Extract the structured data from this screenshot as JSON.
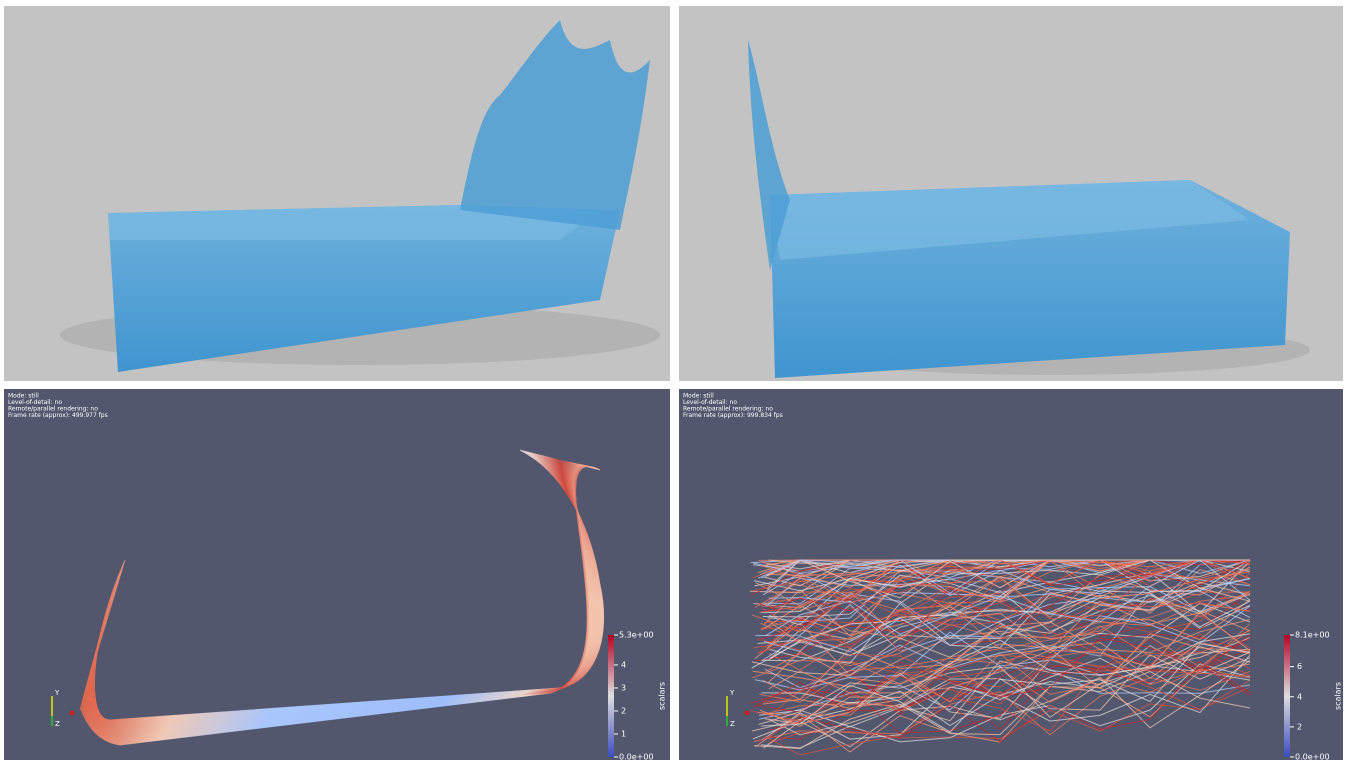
{
  "panels": [
    {
      "kind": "render"
    },
    {
      "kind": "render"
    },
    {
      "kind": "streamlines",
      "info": [
        "Mode: still",
        "Level-of-detail: no",
        "Remote/parallel rendering: no",
        "Frame rate (approx): 499.977 fps"
      ],
      "axes": [
        "Y",
        "Z"
      ],
      "colorbar": {
        "title": "scalars",
        "range": [
          {
            "value": 0,
            "label": "0.0e+00"
          },
          {
            "value": 5.3,
            "label": "5.3e+00"
          }
        ],
        "ticks": [
          1,
          2,
          3,
          4
        ]
      }
    },
    {
      "kind": "streamlines",
      "info": [
        "Mode: still",
        "Level-of-detail: no",
        "Remote/parallel rendering: no",
        "Frame rate (approx): 999.834 fps"
      ],
      "axes": [
        "Y",
        "Z"
      ],
      "colorbar": {
        "title": "scalars",
        "range": [
          {
            "value": 0,
            "label": "0.0e+00"
          },
          {
            "value": 8.1,
            "label": "8.1e+00"
          }
        ],
        "ticks": [
          2,
          4,
          6
        ]
      }
    }
  ]
}
